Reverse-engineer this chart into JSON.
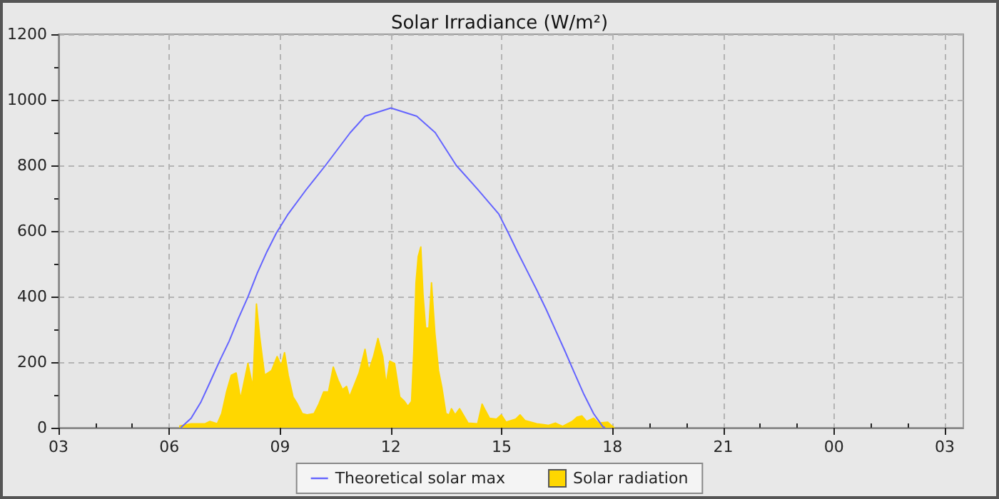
{
  "chart_data": {
    "type": "line",
    "title": "Solar Irradiance (W/m²)",
    "xlim": [
      3,
      27.5
    ],
    "ylim": [
      0,
      1200
    ],
    "xticks": [
      {
        "value": 3,
        "label": "03"
      },
      {
        "value": 4,
        "label": null
      },
      {
        "value": 5,
        "label": null
      },
      {
        "value": 6,
        "label": "06"
      },
      {
        "value": 7,
        "label": null
      },
      {
        "value": 8,
        "label": null
      },
      {
        "value": 9,
        "label": "09"
      },
      {
        "value": 10,
        "label": null
      },
      {
        "value": 11,
        "label": null
      },
      {
        "value": 12,
        "label": "12"
      },
      {
        "value": 13,
        "label": null
      },
      {
        "value": 14,
        "label": null
      },
      {
        "value": 15,
        "label": "15"
      },
      {
        "value": 16,
        "label": null
      },
      {
        "value": 17,
        "label": null
      },
      {
        "value": 18,
        "label": "18"
      },
      {
        "value": 19,
        "label": null
      },
      {
        "value": 20,
        "label": null
      },
      {
        "value": 21,
        "label": "21"
      },
      {
        "value": 22,
        "label": null
      },
      {
        "value": 23,
        "label": null
      },
      {
        "value": 24,
        "label": "00"
      },
      {
        "value": 25,
        "label": null
      },
      {
        "value": 26,
        "label": null
      },
      {
        "value": 27,
        "label": "03"
      }
    ],
    "yticks": [
      0,
      {
        "value": 100,
        "label": null
      },
      200,
      {
        "value": 300,
        "label": null
      },
      400,
      {
        "value": 500,
        "label": null
      },
      600,
      {
        "value": 700,
        "label": null
      },
      800,
      {
        "value": 900,
        "label": null
      },
      1000,
      {
        "value": 1100,
        "label": null
      },
      1200
    ],
    "grid": true,
    "legend": "bottom",
    "marker": "none",
    "series": [
      {
        "name": "Theoretical solar max",
        "type": "line",
        "color": "#6464ff",
        "x": [
          6.31,
          6.59,
          6.85,
          7.1,
          7.36,
          7.62,
          7.87,
          8.13,
          8.38,
          8.64,
          8.9,
          9.22,
          9.7,
          10.23,
          10.9,
          11.3,
          12.0,
          12.7,
          13.2,
          13.77,
          14.35,
          14.92,
          15.18,
          15.43,
          15.69,
          15.95,
          16.2,
          16.46,
          16.72,
          16.97,
          17.23,
          17.49,
          17.74,
          17.8
        ],
        "values": [
          0,
          29,
          77,
          138,
          203,
          264,
          333,
          399,
          471,
          536,
          594,
          652,
          725,
          800,
          900,
          950,
          975,
          950,
          900,
          800,
          727,
          652,
          594,
          536,
          478,
          420,
          362,
          297,
          232,
          167,
          101,
          43,
          3,
          0
        ]
      },
      {
        "name": "Solar radiation",
        "type": "area",
        "color": "#ffd700",
        "x": [
          6.27,
          6.59,
          6.97,
          7.1,
          7.3,
          7.42,
          7.55,
          7.68,
          7.81,
          7.93,
          8.13,
          8.26,
          8.36,
          8.45,
          8.58,
          8.77,
          8.92,
          9.03,
          9.12,
          9.22,
          9.35,
          9.47,
          9.6,
          9.73,
          9.92,
          10.05,
          10.18,
          10.31,
          10.44,
          10.57,
          10.69,
          10.8,
          10.88,
          11.01,
          11.14,
          11.3,
          11.4,
          11.53,
          11.65,
          11.78,
          11.87,
          11.97,
          12.1,
          12.17,
          12.24,
          12.37,
          12.46,
          12.56,
          12.62,
          12.68,
          12.74,
          12.81,
          12.87,
          12.94,
          13.03,
          13.1,
          13.19,
          13.29,
          13.38,
          13.49,
          13.58,
          13.64,
          13.74,
          13.86,
          13.96,
          14.09,
          14.35,
          14.47,
          14.56,
          14.67,
          14.86,
          14.99,
          15.12,
          15.38,
          15.5,
          15.63,
          15.95,
          16.27,
          16.46,
          16.65,
          16.91,
          17.04,
          17.17,
          17.3,
          17.49,
          17.62,
          17.87,
          18.0,
          18.05
        ],
        "values": [
          5,
          12,
          12,
          19,
          12,
          43,
          109,
          160,
          167,
          87,
          196,
          123,
          377,
          275,
          160,
          174,
          217,
          188,
          229,
          160,
          94,
          72,
          43,
          39,
          43,
          72,
          109,
          109,
          185,
          145,
          116,
          126,
          94,
          130,
          167,
          239,
          174,
          217,
          272,
          217,
          130,
          203,
          196,
          145,
          94,
          80,
          65,
          80,
          232,
          442,
          522,
          551,
          406,
          304,
          304,
          442,
          290,
          174,
          123,
          43,
          39,
          58,
          39,
          58,
          39,
          14,
          12,
          72,
          52,
          29,
          26,
          39,
          17,
          26,
          39,
          22,
          12,
          7,
          14,
          4,
          19,
          32,
          36,
          19,
          29,
          14,
          17,
          4,
          0
        ]
      }
    ]
  }
}
